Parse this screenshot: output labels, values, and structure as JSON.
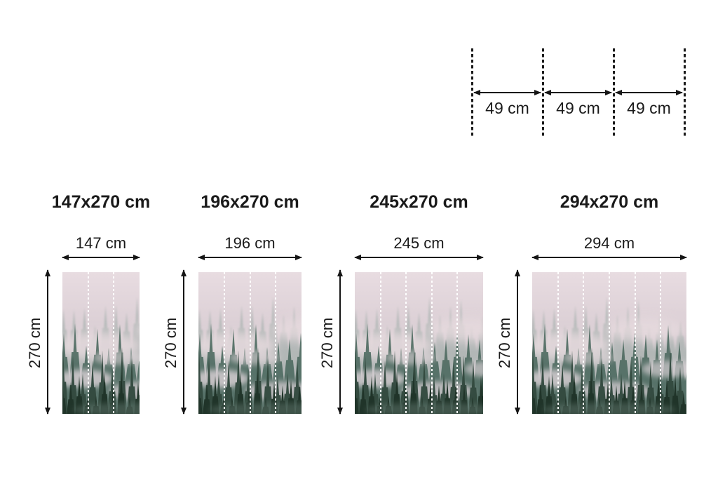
{
  "page": {
    "background": "#ffffff",
    "text_color": "#1a1a1a"
  },
  "panel_diagram": {
    "segments": 3,
    "segment_labels": [
      "49 cm",
      "49 cm",
      "49 cm"
    ]
  },
  "sizes": [
    {
      "title": "147x270 cm",
      "width_label": "147 cm",
      "height_label": "270 cm",
      "panels": 3
    },
    {
      "title": "196x270 cm",
      "width_label": "196 cm",
      "height_label": "270 cm",
      "panels": 4
    },
    {
      "title": "245x270 cm",
      "width_label": "245 cm",
      "height_label": "270 cm",
      "panels": 5
    },
    {
      "title": "294x270 cm",
      "width_label": "294 cm",
      "height_label": "270 cm",
      "panels": 6
    }
  ],
  "mural": {
    "image_name": "foggy-forest-mural",
    "colors": {
      "sky_top": "#e8dce1",
      "sky_mid": "#d9cdd3",
      "sky_low": "#cfc6cb",
      "fog": "#e6dade",
      "far_trees": "#95a7a1",
      "mid_trees": "#4e6a61",
      "near_trees": "#33493f",
      "dark_trees": "#203429",
      "divider": "#ffffff"
    }
  }
}
